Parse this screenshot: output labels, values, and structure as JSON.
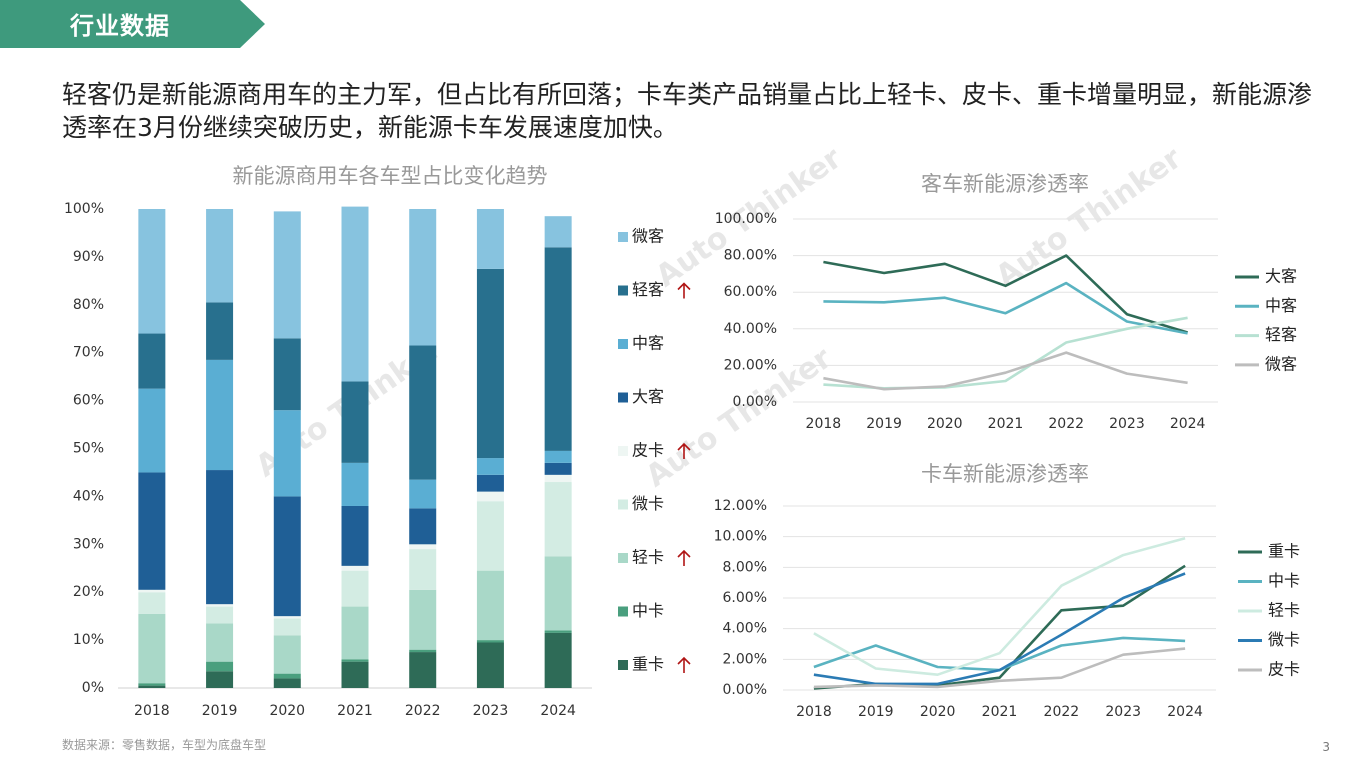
{
  "header": {
    "title": "行业数据",
    "color": "#3e9a7d"
  },
  "headline": "轻客仍是新能源商用车的主力军，但占比有所回落；卡车类产品销量占比上轻卡、皮卡、重卡增量明显，新能源渗透率在3月份继续突破历史，新能源卡车发展速度加快。",
  "watermark": "Auto Thinker",
  "footer": {
    "source": "数据来源：零售数据，车型为底盘车型",
    "page": "3"
  },
  "chart_data": [
    {
      "type": "bar",
      "stacked": true,
      "title": "新能源商用车各车型占比变化趋势",
      "categories": [
        "2018",
        "2019",
        "2020",
        "2021",
        "2022",
        "2023",
        "2024"
      ],
      "ylim": [
        0,
        100
      ],
      "yticks": [
        "0%",
        "10%",
        "20%",
        "30%",
        "40%",
        "50%",
        "60%",
        "70%",
        "80%",
        "90%",
        "100%"
      ],
      "legend_position": "right",
      "series": [
        {
          "name": "重卡",
          "color": "#2e6b57",
          "arrow": true,
          "values": [
            0.5,
            3.5,
            2,
            5.5,
            7.5,
            9.5,
            11.5
          ]
        },
        {
          "name": "中卡",
          "color": "#4a9f7e",
          "arrow": false,
          "values": [
            0.5,
            2,
            1,
            0.5,
            0.5,
            0.5,
            0.5
          ]
        },
        {
          "name": "轻卡",
          "color": "#a9d8c8",
          "arrow": true,
          "values": [
            14.5,
            8,
            8,
            11,
            12.5,
            14.5,
            15.5
          ]
        },
        {
          "name": "微卡",
          "color": "#d3ece3",
          "arrow": false,
          "values": [
            4.5,
            3.5,
            3.5,
            7.5,
            8.5,
            14.5,
            15.5
          ]
        },
        {
          "name": "皮卡",
          "color": "#eef6f3",
          "arrow": true,
          "values": [
            0.5,
            0.5,
            0.5,
            1,
            1,
            2,
            1.5
          ]
        },
        {
          "name": "大客",
          "color": "#1f5f96",
          "arrow": false,
          "values": [
            24.5,
            28,
            25,
            12.5,
            7.5,
            3.5,
            2.5
          ]
        },
        {
          "name": "中客",
          "color": "#5aaed3",
          "arrow": false,
          "values": [
            17.5,
            23,
            18,
            9,
            6,
            3.5,
            2.5
          ]
        },
        {
          "name": "轻客",
          "color": "#28708e",
          "arrow": true,
          "values": [
            11.5,
            12,
            15,
            17,
            28,
            39.5,
            42.5
          ]
        },
        {
          "name": "微客",
          "color": "#87c3df",
          "arrow": false,
          "values": [
            26,
            19.5,
            26.5,
            36.5,
            28.5,
            12.5,
            6.5
          ]
        }
      ]
    },
    {
      "type": "line",
      "title": "客车新能源渗透率",
      "categories": [
        "2018",
        "2019",
        "2020",
        "2021",
        "2022",
        "2023",
        "2024"
      ],
      "ylim": [
        0,
        100
      ],
      "yticks": [
        "0.00%",
        "20.00%",
        "40.00%",
        "60.00%",
        "80.00%",
        "100.00%"
      ],
      "legend_position": "right",
      "series": [
        {
          "name": "大客",
          "color": "#2e6b57",
          "values": [
            76.5,
            70.5,
            75.5,
            63.5,
            80,
            48,
            38
          ]
        },
        {
          "name": "中客",
          "color": "#5ab3c1",
          "values": [
            55,
            54.5,
            57,
            48.5,
            65,
            44,
            37.5
          ]
        },
        {
          "name": "轻客",
          "color": "#b7e1d2",
          "values": [
            9.5,
            7.5,
            8,
            11.5,
            32.5,
            40,
            46
          ]
        },
        {
          "name": "微客",
          "color": "#bdbdbd",
          "values": [
            13,
            7,
            8.5,
            16,
            27,
            15.5,
            10.5
          ]
        }
      ]
    },
    {
      "type": "line",
      "title": "卡车新能源渗透率",
      "categories": [
        "2018",
        "2019",
        "2020",
        "2021",
        "2022",
        "2023",
        "2024"
      ],
      "ylim": [
        0,
        12
      ],
      "yticks": [
        "0.00%",
        "2.00%",
        "4.00%",
        "6.00%",
        "8.00%",
        "10.00%",
        "12.00%"
      ],
      "legend_position": "right",
      "series": [
        {
          "name": "重卡",
          "color": "#2e6b57",
          "values": [
            0.1,
            0.4,
            0.3,
            0.8,
            5.2,
            5.5,
            8.1
          ]
        },
        {
          "name": "中卡",
          "color": "#5ab3c1",
          "values": [
            1.5,
            2.9,
            1.5,
            1.3,
            2.9,
            3.4,
            3.2
          ]
        },
        {
          "name": "轻卡",
          "color": "#cdebe0",
          "values": [
            3.7,
            1.4,
            1.0,
            2.4,
            6.8,
            8.8,
            9.9
          ]
        },
        {
          "name": "微卡",
          "color": "#2b7bb4",
          "values": [
            1.0,
            0.4,
            0.4,
            1.3,
            3.6,
            6.0,
            7.6
          ]
        },
        {
          "name": "皮卡",
          "color": "#bdbdbd",
          "values": [
            0.2,
            0.3,
            0.2,
            0.6,
            0.8,
            2.3,
            2.7
          ]
        }
      ]
    }
  ]
}
